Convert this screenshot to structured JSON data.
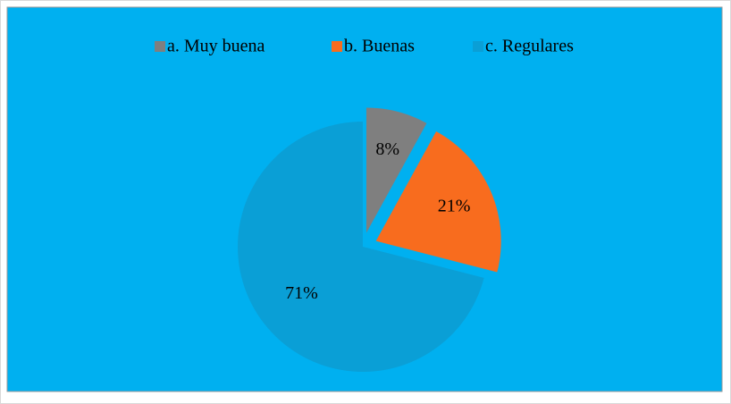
{
  "chart_data": {
    "type": "pie",
    "categories": [
      "a. Muy buena",
      "b. Buenas",
      "c. Regulares"
    ],
    "values": [
      8,
      21,
      71
    ],
    "value_labels": [
      "8%",
      "21%",
      "71%"
    ],
    "colors": [
      "#7f7f7f",
      "#f86c1e",
      "#0a9fd6"
    ],
    "background": "#00b0f0",
    "legend": "top"
  }
}
